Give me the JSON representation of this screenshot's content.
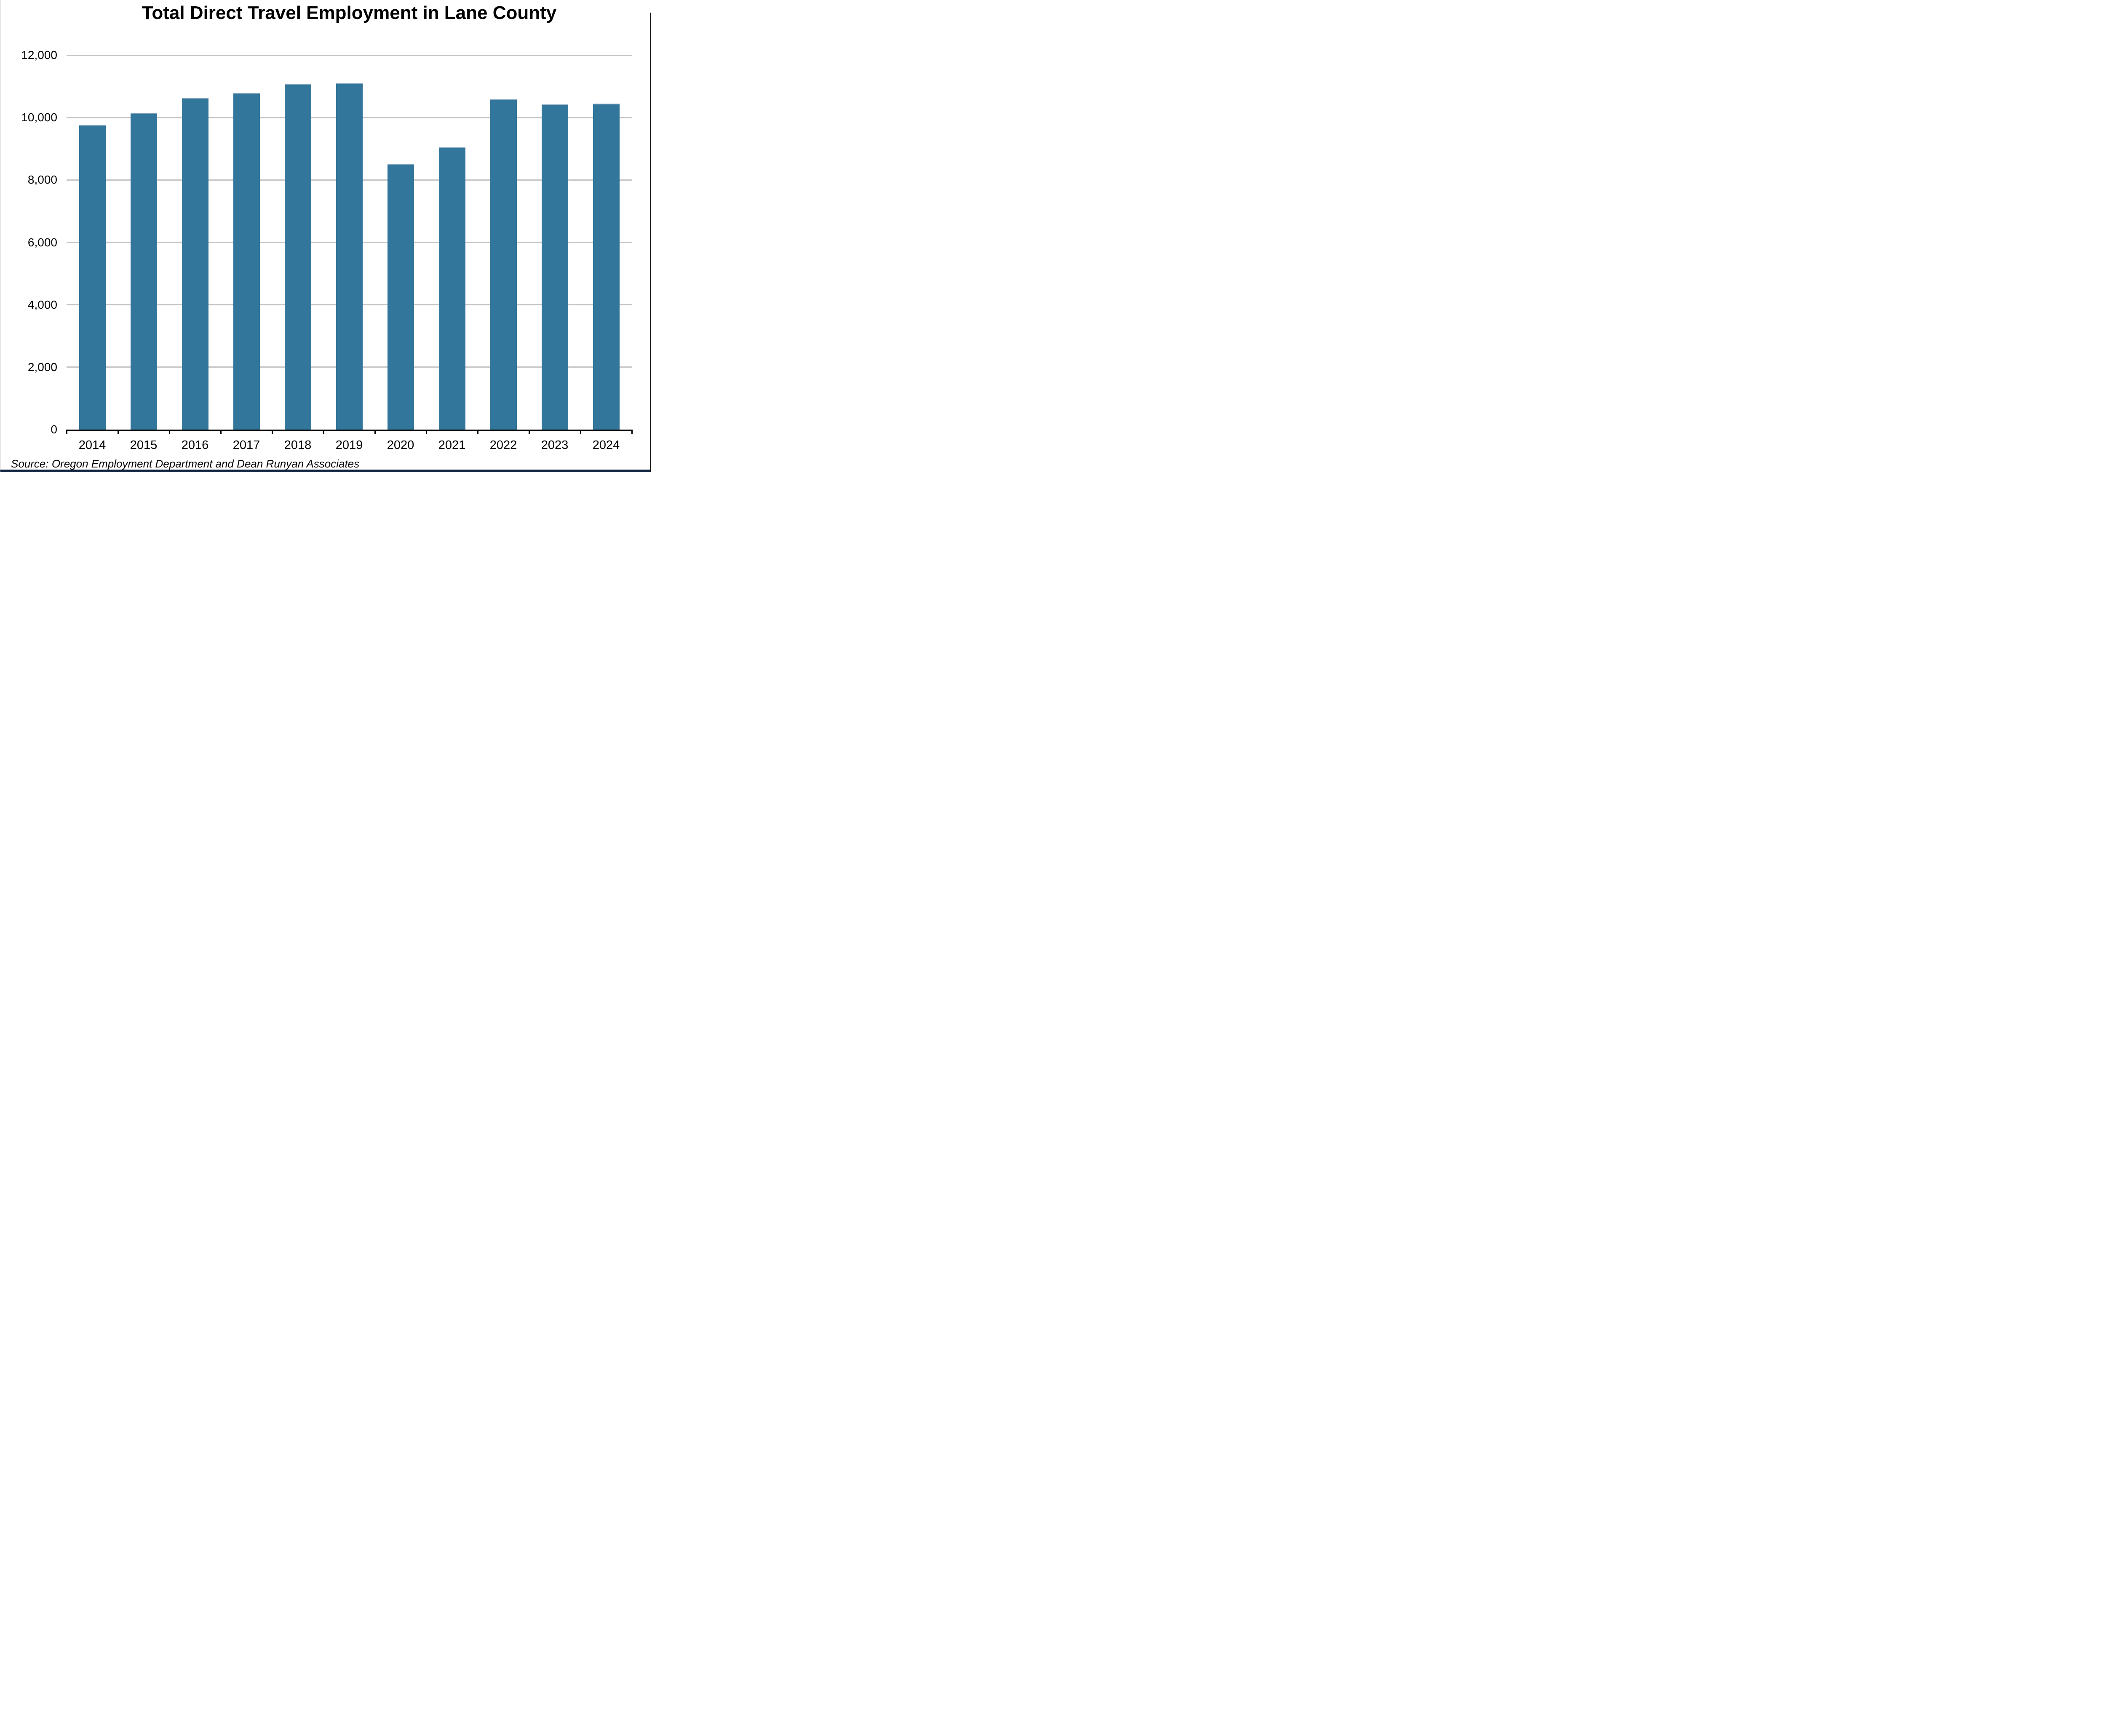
{
  "title": "Total Direct Travel Employment in Lane County",
  "source_note": "Source: Oregon Employment Department and Dean Runyan Associates",
  "colors": {
    "bar_fill": "#33769B",
    "bar_top_edge": "#7FA3BE",
    "gridline": "#C6C6C6",
    "axis": "#000000",
    "text": "#000000",
    "bottom_rule": "#0E2240",
    "right_rule": "#000000",
    "left_rule": "#A6A6A6",
    "background": "#FFFFFF"
  },
  "chart_data": {
    "type": "bar",
    "title": "Total Direct Travel Employment in Lane County",
    "categories": [
      "2014",
      "2015",
      "2016",
      "2017",
      "2018",
      "2019",
      "2020",
      "2021",
      "2022",
      "2023",
      "2024"
    ],
    "values": [
      9760,
      10140,
      10620,
      10780,
      11070,
      11100,
      8520,
      9040,
      10580,
      10420,
      10450
    ],
    "xlabel": "",
    "ylabel": "",
    "ylim": [
      0,
      12000
    ],
    "ytick_interval": 2000,
    "yticks": [
      0,
      2000,
      4000,
      6000,
      8000,
      10000,
      12000
    ],
    "ytick_labels": [
      "0",
      "2,000",
      "4,000",
      "6,000",
      "8,000",
      "10,000",
      "12,000"
    ],
    "grid": "horizontal-only",
    "legend": "none",
    "source_note": "Source: Oregon Employment Department and Dean Runyan Associates"
  }
}
